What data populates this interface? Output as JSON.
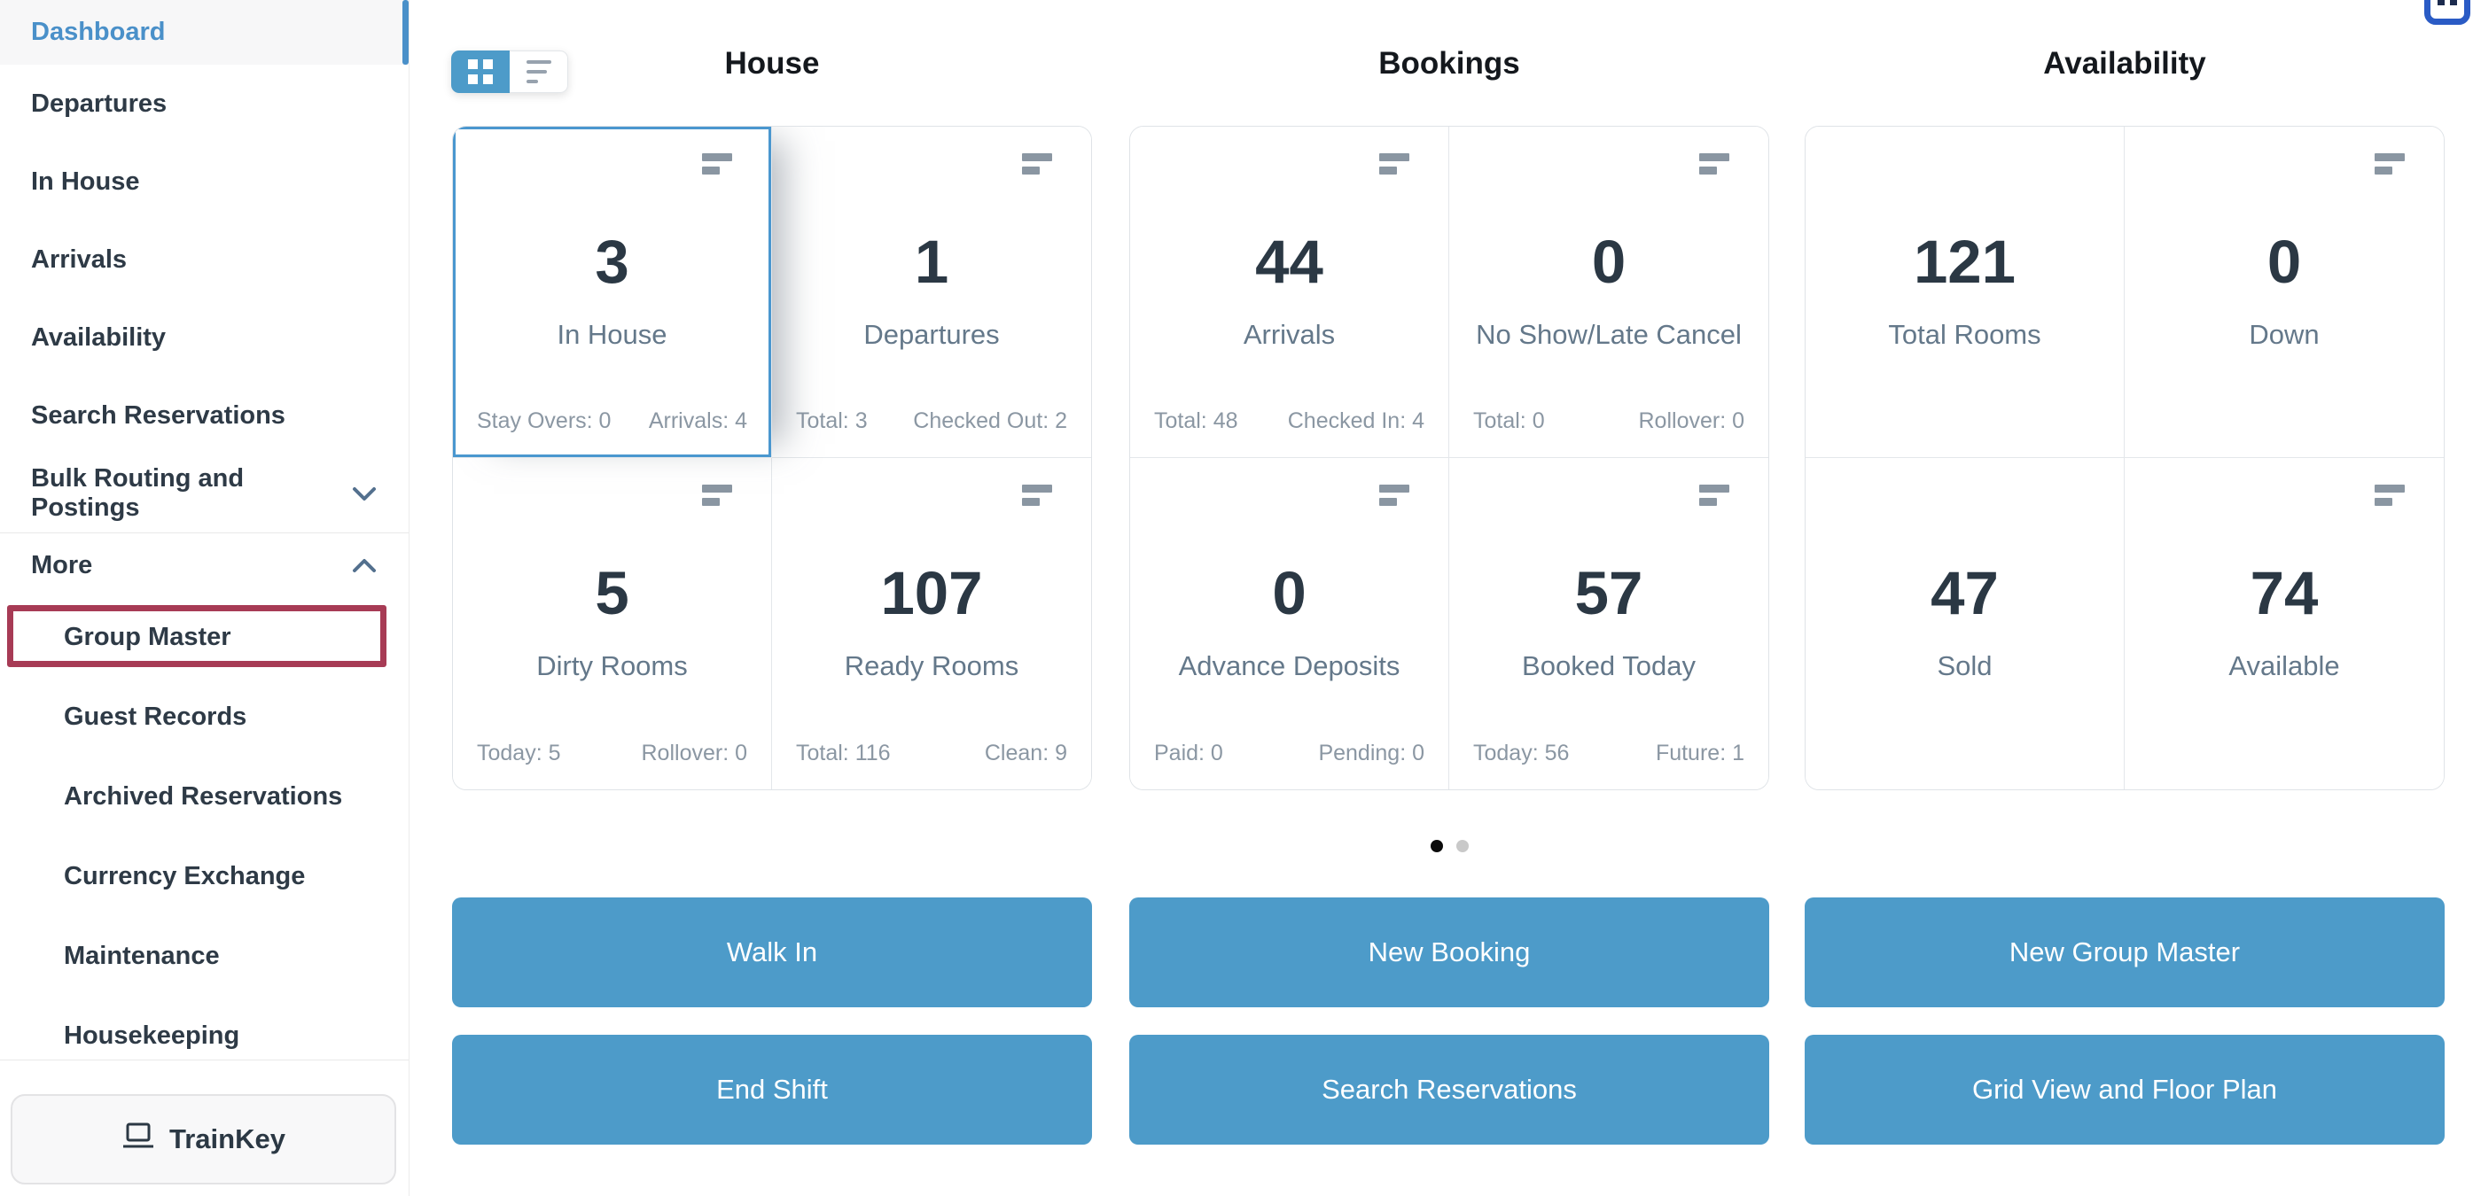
{
  "colors": {
    "accent": "#4D9BC9",
    "accent_link": "#4A90C9",
    "highlight_red": "#A73B55",
    "number_dark": "#2B3844",
    "label_gray": "#64788A",
    "muted_gray": "#8B97A3",
    "dot_active": "#0B0B0B",
    "dot_inactive": "#C9C9C9",
    "badge_blue": "#2A5BC5"
  },
  "sidebar": {
    "items": [
      {
        "label": "Dashboard",
        "active": true
      },
      {
        "label": "Departures"
      },
      {
        "label": "In House"
      },
      {
        "label": "Arrivals"
      },
      {
        "label": "Availability"
      },
      {
        "label": "Search Reservations"
      },
      {
        "label": "Bulk Routing and Postings",
        "chevron": "down"
      },
      {
        "label": "More",
        "chevron": "up",
        "divider_above": true
      }
    ],
    "sub_items": [
      {
        "label": "Group Master",
        "highlighted": true
      },
      {
        "label": "Guest Records"
      },
      {
        "label": "Archived Reservations"
      },
      {
        "label": "Currency Exchange"
      },
      {
        "label": "Maintenance"
      },
      {
        "label": "Housekeeping"
      }
    ],
    "trainkey": {
      "label": "TrainKey"
    }
  },
  "view_toggle": {
    "modes": [
      {
        "name": "grid",
        "active": true
      },
      {
        "name": "list",
        "active": false
      }
    ]
  },
  "sections": [
    {
      "title": "House",
      "cards": [
        {
          "value": "3",
          "label": "In House",
          "foot_left": "Stay Overs: 0",
          "foot_right": "Arrivals: 4",
          "selected": true,
          "menu_icon": true
        },
        {
          "value": "1",
          "label": "Departures",
          "foot_left": "Total: 3",
          "foot_right": "Checked Out: 2",
          "menu_icon": true
        },
        {
          "value": "5",
          "label": "Dirty Rooms",
          "foot_left": "Today: 5",
          "foot_right": "Rollover: 0",
          "menu_icon": true
        },
        {
          "value": "107",
          "label": "Ready Rooms",
          "foot_left": "Total: 116",
          "foot_right": "Clean: 9",
          "menu_icon": true
        }
      ]
    },
    {
      "title": "Bookings",
      "cards": [
        {
          "value": "44",
          "label": "Arrivals",
          "foot_left": "Total: 48",
          "foot_right": "Checked In: 4",
          "menu_icon": true
        },
        {
          "value": "0",
          "label": "No Show/Late Cancel",
          "foot_left": "Total: 0",
          "foot_right": "Rollover: 0",
          "menu_icon": true
        },
        {
          "value": "0",
          "label": "Advance Deposits",
          "foot_left": "Paid: 0",
          "foot_right": "Pending: 0",
          "menu_icon": true
        },
        {
          "value": "57",
          "label": "Booked Today",
          "foot_left": "Today: 56",
          "foot_right": "Future: 1",
          "menu_icon": true
        }
      ]
    },
    {
      "title": "Availability",
      "cards": [
        {
          "value": "121",
          "label": "Total Rooms"
        },
        {
          "value": "0",
          "label": "Down",
          "menu_icon": true
        },
        {
          "value": "47",
          "label": "Sold"
        },
        {
          "value": "74",
          "label": "Available",
          "menu_icon": true
        }
      ]
    }
  ],
  "pagination": {
    "dot_count": 2,
    "active_index": 0
  },
  "action_buttons": [
    [
      "Walk In",
      "New Booking",
      "New Group Master"
    ],
    [
      "End Shift",
      "Search Reservations",
      "Grid View and Floor Plan"
    ]
  ]
}
